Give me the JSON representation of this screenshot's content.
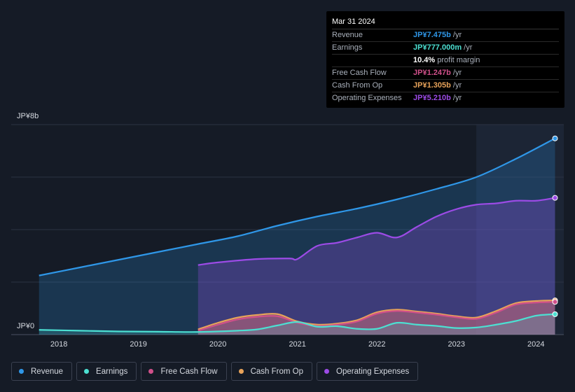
{
  "chart_data": {
    "type": "area",
    "y_axis_top_label": "JP¥8b",
    "y_axis_bottom_label": "JP¥0",
    "ylim": [
      0,
      8
    ],
    "x_ticks": [
      "2018",
      "2019",
      "2020",
      "2021",
      "2022",
      "2023",
      "2024"
    ],
    "x_tick_values": [
      2018.0,
      2019.0,
      2020.0,
      2021.0,
      2022.0,
      2023.0,
      2024.0
    ],
    "xlim": [
      2017.4,
      2024.35
    ],
    "highlight_start": 2023.25,
    "series": [
      {
        "name": "Revenue",
        "color": "#2f97e8",
        "x": [
          2017.75,
          2018.25,
          2018.75,
          2019.25,
          2019.75,
          2020.25,
          2020.75,
          2021.25,
          2021.75,
          2022.25,
          2022.75,
          2023.25,
          2023.75,
          2024.24
        ],
        "values": [
          2.25,
          2.55,
          2.85,
          3.15,
          3.45,
          3.75,
          4.15,
          4.5,
          4.8,
          5.15,
          5.55,
          6.0,
          6.7,
          7.475
        ]
      },
      {
        "name": "Operating Expenses",
        "color": "#9c4be6",
        "x": [
          2019.75,
          2020.0,
          2020.5,
          2020.9,
          2021.0,
          2021.25,
          2021.5,
          2021.75,
          2022.0,
          2022.25,
          2022.5,
          2022.75,
          2023.0,
          2023.25,
          2023.5,
          2023.75,
          2024.0,
          2024.24
        ],
        "values": [
          2.65,
          2.75,
          2.88,
          2.9,
          2.88,
          3.38,
          3.5,
          3.7,
          3.88,
          3.7,
          4.1,
          4.5,
          4.78,
          4.95,
          5.0,
          5.1,
          5.1,
          5.21
        ]
      },
      {
        "name": "Cash From Op",
        "color": "#e8a35a",
        "x": [
          2019.75,
          2020.0,
          2020.25,
          2020.5,
          2020.75,
          2021.0,
          2021.25,
          2021.5,
          2021.75,
          2022.0,
          2022.25,
          2022.5,
          2022.75,
          2023.0,
          2023.25,
          2023.5,
          2023.75,
          2024.0,
          2024.24
        ],
        "values": [
          0.2,
          0.45,
          0.65,
          0.75,
          0.78,
          0.5,
          0.38,
          0.42,
          0.55,
          0.85,
          0.95,
          0.88,
          0.8,
          0.7,
          0.65,
          0.9,
          1.2,
          1.28,
          1.305
        ]
      },
      {
        "name": "Free Cash Flow",
        "color": "#d0508a",
        "x": [
          2019.75,
          2020.0,
          2020.25,
          2020.5,
          2020.75,
          2021.0,
          2021.25,
          2021.5,
          2021.75,
          2022.0,
          2022.25,
          2022.5,
          2022.75,
          2023.0,
          2023.25,
          2023.5,
          2023.75,
          2024.0,
          2024.24
        ],
        "values": [
          0.15,
          0.38,
          0.58,
          0.68,
          0.7,
          0.45,
          0.33,
          0.38,
          0.5,
          0.8,
          0.9,
          0.84,
          0.76,
          0.66,
          0.6,
          0.84,
          1.15,
          1.22,
          1.247
        ]
      },
      {
        "name": "Earnings",
        "color": "#4ce0d2",
        "x": [
          2017.75,
          2018.25,
          2018.75,
          2019.25,
          2019.75,
          2020.25,
          2020.5,
          2020.75,
          2021.0,
          2021.25,
          2021.5,
          2021.75,
          2022.0,
          2022.25,
          2022.5,
          2022.75,
          2023.0,
          2023.25,
          2023.5,
          2023.75,
          2024.0,
          2024.24
        ],
        "values": [
          0.18,
          0.15,
          0.12,
          0.11,
          0.1,
          0.15,
          0.2,
          0.35,
          0.48,
          0.3,
          0.32,
          0.22,
          0.22,
          0.45,
          0.38,
          0.33,
          0.25,
          0.27,
          0.38,
          0.52,
          0.72,
          0.777
        ]
      }
    ]
  },
  "tooltip": {
    "date": "Mar 31 2024",
    "rows": [
      {
        "label": "Revenue",
        "value": "JP¥7.475b",
        "unit": " /yr",
        "color": "#2f97e8"
      },
      {
        "label": "Earnings",
        "value": "JP¥777.000m",
        "unit": " /yr",
        "color": "#4ce0d2"
      },
      {
        "label": "",
        "value": "10.4%",
        "unit": " profit margin",
        "color": "#ffffff"
      },
      {
        "label": "Free Cash Flow",
        "value": "JP¥1.247b",
        "unit": " /yr",
        "color": "#d0508a"
      },
      {
        "label": "Cash From Op",
        "value": "JP¥1.305b",
        "unit": " /yr",
        "color": "#e8a35a"
      },
      {
        "label": "Operating Expenses",
        "value": "JP¥5.210b",
        "unit": " /yr",
        "color": "#9c4be6"
      }
    ]
  },
  "legend": [
    {
      "label": "Revenue",
      "color": "#2f97e8"
    },
    {
      "label": "Earnings",
      "color": "#4ce0d2"
    },
    {
      "label": "Free Cash Flow",
      "color": "#d0508a"
    },
    {
      "label": "Cash From Op",
      "color": "#e8a35a"
    },
    {
      "label": "Operating Expenses",
      "color": "#9c4be6"
    }
  ]
}
